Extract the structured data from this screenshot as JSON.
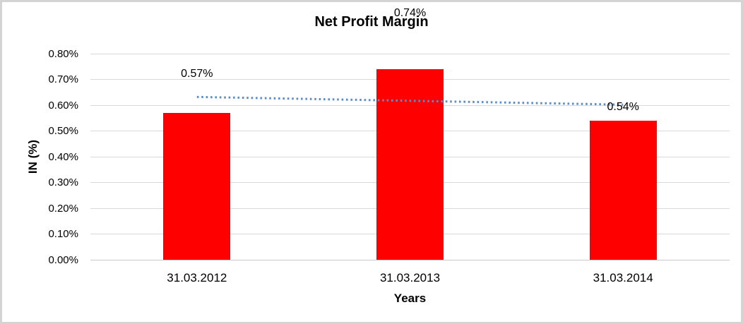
{
  "window": {
    "background": "#ffffff",
    "border_color": "#d4d4d4"
  },
  "chart_data": {
    "type": "bar",
    "title": "Net Profit Margin",
    "xlabel": "Years",
    "ylabel": "IN (%)",
    "categories": [
      "31.03.2012",
      "31.03.2013",
      "31.03.2014"
    ],
    "values": [
      0.57,
      0.74,
      0.54
    ],
    "data_labels": [
      "0.57%",
      "0.74%",
      "0.54%"
    ],
    "y_tick_labels": [
      "0.00%",
      "0.10%",
      "0.20%",
      "0.30%",
      "0.40%",
      "0.50%",
      "0.60%",
      "0.70%",
      "0.80%"
    ],
    "ylim": [
      0,
      0.8
    ],
    "grid": true,
    "legend_position": "none",
    "bar_color": "#ff0000",
    "gridline_color": "#d9d9d9",
    "axis_line_color": "#c8c8c8",
    "text_color": "#000000",
    "trendline": {
      "type": "linear",
      "style": "dotted",
      "color": "#5b8dca",
      "start_value": 0.632,
      "end_value": 0.602
    }
  }
}
